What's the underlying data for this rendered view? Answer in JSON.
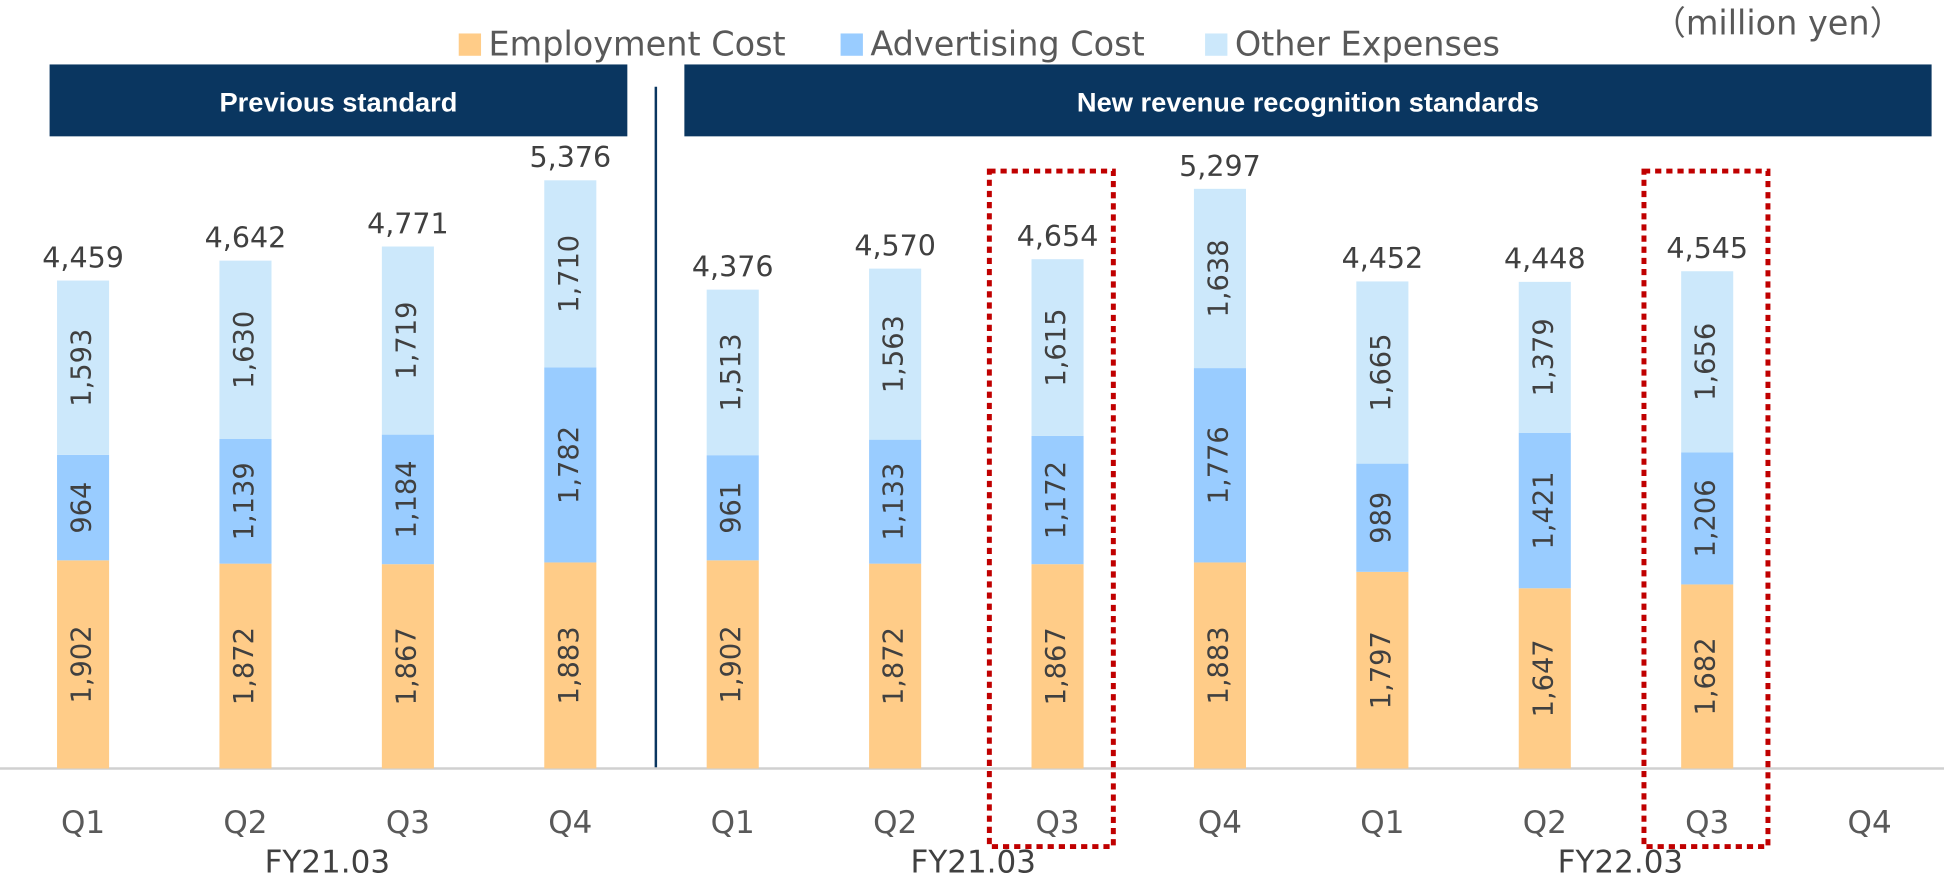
{
  "chart_data": {
    "type": "stacked_bar",
    "unit_label": "（million yen）",
    "categories": [
      "Q1",
      "Q2",
      "Q3",
      "Q4",
      "Q1",
      "Q2",
      "Q3",
      "Q4",
      "Q1",
      "Q2",
      "Q3",
      "Q4"
    ],
    "series": [
      {
        "name": "Employment Cost",
        "color": "#ffcc88",
        "values": [
          1902,
          1872,
          1867,
          1883,
          1902,
          1872,
          1867,
          1883,
          1797,
          1647,
          1682,
          null
        ],
        "value_labels": [
          "1,902",
          "1,872",
          "1,867",
          "1,883",
          "1,902",
          "1,872",
          "1,867",
          "1,883",
          "1,797",
          "1,647",
          "1,682",
          null
        ]
      },
      {
        "name": "Advertising Cost",
        "color": "#99ccff",
        "values": [
          964,
          1139,
          1184,
          1782,
          961,
          1133,
          1172,
          1776,
          989,
          1421,
          1206,
          null
        ],
        "value_labels": [
          "964",
          "1,139",
          "1,184",
          "1,782",
          "961",
          "1,133",
          "1,172",
          "1,776",
          "989",
          "1,421",
          "1,206",
          null
        ]
      },
      {
        "name": "Other Expenses",
        "color": "#cce8fb",
        "values": [
          1593,
          1630,
          1719,
          1710,
          1513,
          1563,
          1615,
          1638,
          1665,
          1379,
          1656,
          null
        ],
        "value_labels": [
          "1,593",
          "1,630",
          "1,719",
          "1,710",
          "1,513",
          "1,563",
          "1,615",
          "1,638",
          "1,665",
          "1,379",
          "1,656",
          null
        ]
      }
    ],
    "totals": [
      4459,
      4642,
      4771,
      5376,
      4376,
      4570,
      4654,
      5297,
      4452,
      4448,
      4545,
      null
    ],
    "total_labels": [
      "4,459",
      "4,642",
      "4,771",
      "5,376",
      "4,376",
      "4,570",
      "4,654",
      "5,297",
      "4,452",
      "4,448",
      "4,545",
      null
    ],
    "groups": [
      "FY21.03",
      "FY21.03",
      "FY22.03"
    ],
    "standards": [
      "Previous standard",
      "New revenue recognition standards"
    ],
    "ylim": [
      0,
      7000
    ]
  }
}
